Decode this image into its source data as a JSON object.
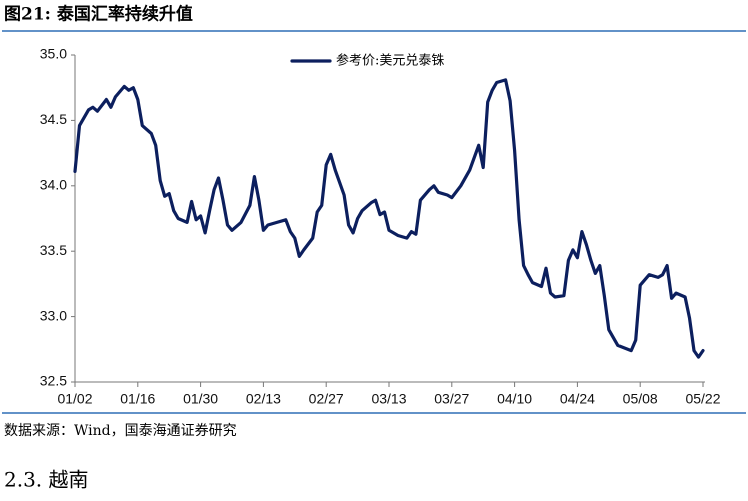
{
  "chart_data": {
    "type": "line",
    "title": "图21:  泰国汇率持续升值",
    "x": [
      "01/02",
      "01/03",
      "01/05",
      "01/06",
      "01/07",
      "01/09",
      "01/10",
      "01/11",
      "01/13",
      "01/14",
      "01/15",
      "01/16",
      "01/17",
      "01/19",
      "01/20",
      "01/21",
      "01/22",
      "01/23",
      "01/24",
      "01/25",
      "01/27",
      "01/28",
      "01/29",
      "01/30",
      "01/31",
      "02/01",
      "02/02",
      "02/03",
      "02/04",
      "02/05",
      "02/06",
      "02/08",
      "02/10",
      "02/11",
      "02/12",
      "02/13",
      "02/14",
      "02/16",
      "02/18",
      "02/19",
      "02/20",
      "02/21",
      "02/22",
      "02/24",
      "02/25",
      "02/26",
      "02/27",
      "02/28",
      "03/01",
      "03/03",
      "03/04",
      "03/05",
      "03/06",
      "03/07",
      "03/09",
      "03/10",
      "03/11",
      "03/12",
      "03/13",
      "03/15",
      "03/17",
      "03/18",
      "03/19",
      "03/20",
      "03/22",
      "03/23",
      "03/24",
      "03/26",
      "03/27",
      "03/29",
      "03/31",
      "04/02",
      "04/03",
      "04/04",
      "04/05",
      "04/06",
      "04/08",
      "04/09",
      "04/10",
      "04/11",
      "04/12",
      "04/13",
      "04/14",
      "04/16",
      "04/17",
      "04/18",
      "04/19",
      "04/21",
      "04/22",
      "04/23",
      "04/24",
      "04/25",
      "04/26",
      "04/27",
      "04/28",
      "04/29",
      "04/30",
      "05/01",
      "05/03",
      "05/06",
      "05/07",
      "05/08",
      "05/10",
      "05/12",
      "05/13",
      "05/14",
      "05/15",
      "05/16",
      "05/18",
      "05/19",
      "05/20",
      "05/21",
      "05/22"
    ],
    "series": [
      {
        "name": "参考价:美元兑泰铢",
        "color": "#0c1f5e",
        "values": [
          34.11,
          34.46,
          34.58,
          34.6,
          34.57,
          34.66,
          34.6,
          34.68,
          34.76,
          34.73,
          34.75,
          34.66,
          34.46,
          34.4,
          34.31,
          34.04,
          33.92,
          33.94,
          33.81,
          33.75,
          33.72,
          33.88,
          33.74,
          33.77,
          33.64,
          33.81,
          33.97,
          34.06,
          33.89,
          33.7,
          33.66,
          33.72,
          33.85,
          34.07,
          33.89,
          33.66,
          33.7,
          33.72,
          33.74,
          33.65,
          33.6,
          33.46,
          33.51,
          33.6,
          33.8,
          33.85,
          34.16,
          34.24,
          34.12,
          33.93,
          33.7,
          33.64,
          33.75,
          33.81,
          33.87,
          33.89,
          33.78,
          33.8,
          33.66,
          33.62,
          33.6,
          33.65,
          33.63,
          33.89,
          33.97,
          34.0,
          33.95,
          33.93,
          33.91,
          34.0,
          34.12,
          34.31,
          34.14,
          34.64,
          34.73,
          34.79,
          34.81,
          34.65,
          34.27,
          33.74,
          33.39,
          33.32,
          33.26,
          33.23,
          33.37,
          33.18,
          33.15,
          33.16,
          33.43,
          33.51,
          33.45,
          33.65,
          33.55,
          33.43,
          33.33,
          33.39,
          33.16,
          32.9,
          32.78,
          32.74,
          32.82,
          33.24,
          33.32,
          33.3,
          33.32,
          33.39,
          33.14,
          33.18,
          33.15,
          32.99,
          32.74,
          32.69,
          32.74
        ]
      }
    ],
    "xticks": [
      "01/02",
      "01/16",
      "01/30",
      "02/13",
      "02/27",
      "03/13",
      "03/27",
      "04/10",
      "04/24",
      "05/08",
      "05/22"
    ],
    "ylim": [
      32.5,
      35
    ],
    "yticks": [
      {
        "value": 32.5,
        "label": "32.5"
      },
      {
        "value": 33,
        "label": "33.0"
      },
      33.5,
      {
        "value": 34,
        "label": "34.0"
      },
      34.5,
      {
        "value": 35,
        "label": "35.0"
      }
    ],
    "grid": false,
    "legend": "top"
  },
  "source": "数据来源：Wind，国泰海通证券研究",
  "section_heading": "2.3. 越南"
}
